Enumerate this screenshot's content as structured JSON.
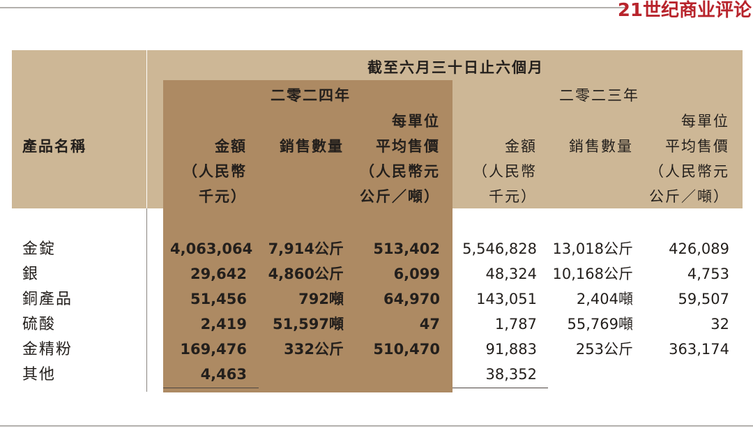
{
  "brand": "21世纪商业评论",
  "table": {
    "period": "截至六月三十日止六個月",
    "product_header": "產品名稱",
    "years": [
      "二零二四年",
      "二零二三年"
    ],
    "col_headers": [
      [
        "金額",
        "（人民幣",
        "千元）"
      ],
      [
        "銷售數量"
      ],
      [
        "每單位",
        "平均售價",
        "（人民幣元",
        "公斤／噸）"
      ]
    ],
    "rows": [
      {
        "name": "金錠",
        "y2024": [
          "4,063,064",
          "7,914公斤",
          "513,402"
        ],
        "y2023": [
          "5,546,828",
          "13,018公斤",
          "426,089"
        ]
      },
      {
        "name": "銀",
        "y2024": [
          "29,642",
          "4,860公斤",
          "6,099"
        ],
        "y2023": [
          "48,324",
          "10,168公斤",
          "4,753"
        ]
      },
      {
        "name": "銅產品",
        "y2024": [
          "51,456",
          "792噸",
          "64,970"
        ],
        "y2023": [
          "143,051",
          "2,404噸",
          "59,507"
        ]
      },
      {
        "name": "硫酸",
        "y2024": [
          "2,419",
          "51,597噸",
          "47"
        ],
        "y2023": [
          "1,787",
          "55,769噸",
          "32"
        ]
      },
      {
        "name": "金精粉",
        "y2024": [
          "169,476",
          "332公斤",
          "510,470"
        ],
        "y2023": [
          "91,883",
          "253公斤",
          "363,174"
        ]
      },
      {
        "name": "其他",
        "y2024": [
          "4,463",
          "",
          ""
        ],
        "y2023": [
          "38,352",
          "",
          ""
        ]
      }
    ]
  }
}
